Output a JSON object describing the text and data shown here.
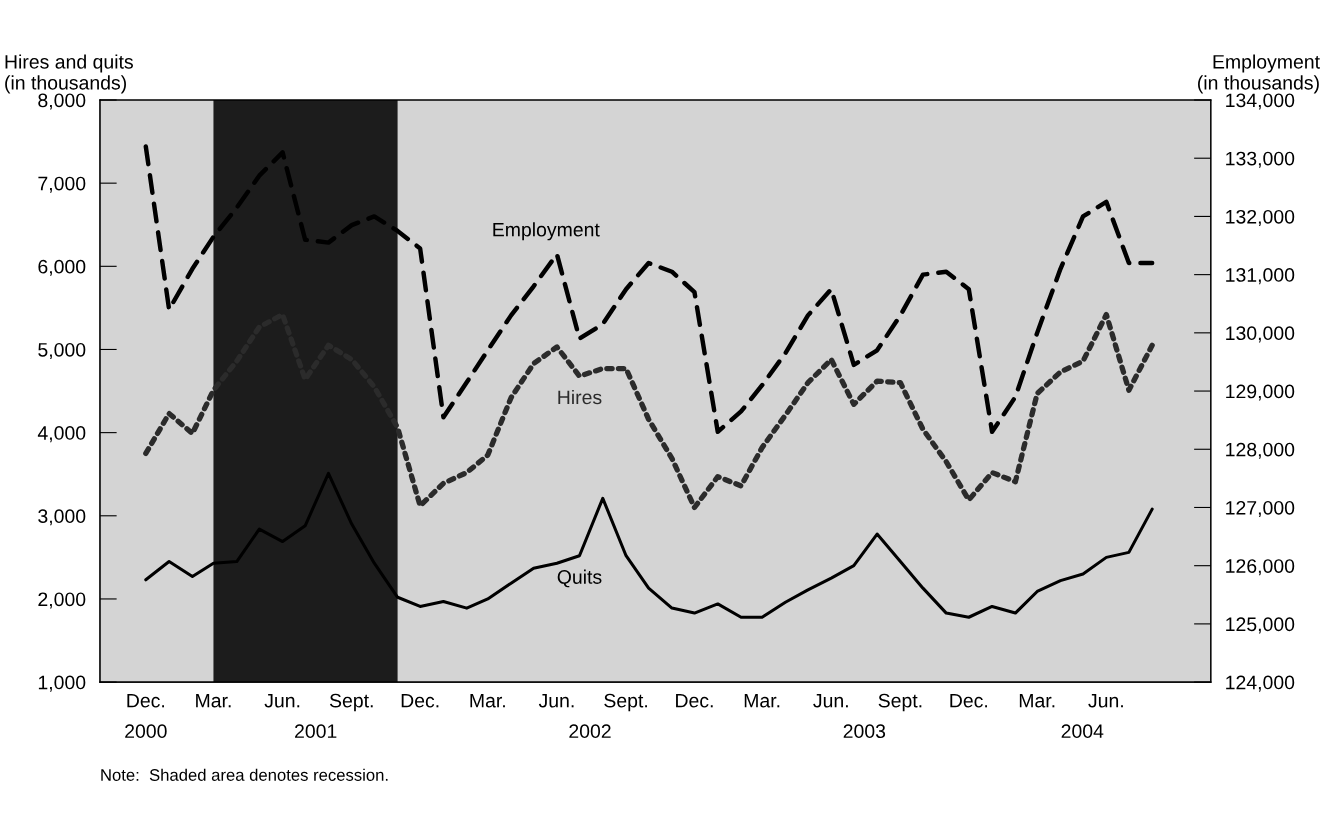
{
  "chart_data": {
    "type": "line",
    "ylabel": "Hires and quits\n(in thousands)",
    "y2label": "Employment\n(in thousands)",
    "x": [
      "2000-12",
      "2001-01",
      "2001-02",
      "2001-03",
      "2001-04",
      "2001-05",
      "2001-06",
      "2001-07",
      "2001-08",
      "2001-09",
      "2001-10",
      "2001-11",
      "2001-12",
      "2002-01",
      "2002-02",
      "2002-03",
      "2002-04",
      "2002-05",
      "2002-06",
      "2002-07",
      "2002-08",
      "2002-09",
      "2002-10",
      "2002-11",
      "2002-12",
      "2003-01",
      "2003-02",
      "2003-03",
      "2003-04",
      "2003-05",
      "2003-06",
      "2003-07",
      "2003-08",
      "2003-09",
      "2003-10",
      "2003-11",
      "2003-12",
      "2004-01",
      "2004-02",
      "2004-03",
      "2004-04",
      "2004-05",
      "2004-06",
      "2004-07",
      "2004-08"
    ],
    "series": [
      {
        "name": "Employment",
        "color": "#000000",
        "line_style": "dashed",
        "axis": "y2",
        "values": [
          133200,
          130400,
          131100,
          131650,
          132150,
          132700,
          133100,
          131600,
          131550,
          131850,
          132000,
          131750,
          131450,
          128550,
          129150,
          129700,
          130300,
          130800,
          131350,
          129900,
          130150,
          130750,
          131200,
          131050,
          130700,
          128300,
          128650,
          129100,
          129650,
          130300,
          130750,
          129450,
          129700,
          130300,
          131000,
          131050,
          130750,
          128300,
          128900,
          130000,
          131100,
          132000,
          132250,
          131200,
          131200
        ]
      },
      {
        "name": "Hires",
        "color": "#2b2b2b",
        "line_style": "dotted",
        "values": [
          3750,
          4230,
          3990,
          4510,
          4860,
          5270,
          5420,
          4640,
          5050,
          4880,
          4550,
          4060,
          3120,
          3390,
          3520,
          3730,
          4420,
          4830,
          5030,
          4680,
          4770,
          4770,
          4160,
          3690,
          3100,
          3470,
          3360,
          3820,
          4210,
          4600,
          4880,
          4340,
          4620,
          4600,
          4040,
          3650,
          3190,
          3520,
          3410,
          4470,
          4730,
          4860,
          5420,
          4510,
          5050
        ]
      },
      {
        "name": "Quits",
        "color": "#000000",
        "line_style": "solid",
        "values": [
          2230,
          2450,
          2270,
          2430,
          2450,
          2840,
          2690,
          2880,
          3510,
          2900,
          2430,
          2020,
          1910,
          1970,
          1890,
          2000,
          2190,
          2370,
          2430,
          2520,
          3210,
          2520,
          2130,
          1890,
          1830,
          1940,
          1780,
          1780,
          1960,
          2110,
          2250,
          2400,
          2780,
          2450,
          2130,
          1830,
          1780,
          1910,
          1830,
          2090,
          2220,
          2300,
          2500,
          2560,
          3080
        ]
      }
    ],
    "xlim": [
      "2000-10",
      "2004-10-18"
    ],
    "xticks": [
      {
        "value": "2000-12",
        "label": "Dec."
      },
      {
        "value": "2001-03",
        "label": "Mar."
      },
      {
        "value": "2001-06",
        "label": "Jun."
      },
      {
        "value": "2001-09",
        "label": "Sept."
      },
      {
        "value": "2001-12",
        "label": "Dec."
      },
      {
        "value": "2002-03",
        "label": "Mar."
      },
      {
        "value": "2002-06",
        "label": "Jun."
      },
      {
        "value": "2002-09",
        "label": "Sept."
      },
      {
        "value": "2002-12",
        "label": "Dec."
      },
      {
        "value": "2003-03",
        "label": "Mar."
      },
      {
        "value": "2003-06",
        "label": "Jun."
      },
      {
        "value": "2003-09",
        "label": "Sept."
      },
      {
        "value": "2003-12",
        "label": "Dec."
      },
      {
        "value": "2004-03",
        "label": "Mar."
      },
      {
        "value": "2004-06",
        "label": "Jun."
      }
    ],
    "x2lim": [
      "2000-10",
      "2004-10-18"
    ],
    "x2ticks": [
      {
        "value": "2000-12",
        "label": "2000"
      },
      {
        "value": "2001-07-15",
        "label": "2001"
      },
      {
        "value": "2002-07-15",
        "label": "2002"
      },
      {
        "value": "2003-07-15",
        "label": "2003"
      },
      {
        "value": "2004-04-30",
        "label": "2004"
      }
    ],
    "ylim": [
      1000,
      8000
    ],
    "yticks": [
      {
        "value": 1000,
        "label": "1,000"
      },
      {
        "value": 2000,
        "label": "2,000"
      },
      {
        "value": 3000,
        "label": "3,000"
      },
      {
        "value": 4000,
        "label": "4,000"
      },
      {
        "value": 5000,
        "label": "5,000"
      },
      {
        "value": 6000,
        "label": "6,000"
      },
      {
        "value": 7000,
        "label": "7,000"
      },
      {
        "value": 8000,
        "label": "8,000"
      }
    ],
    "y2lim": [
      124000,
      134000
    ],
    "y2ticks": [
      {
        "value": 124000,
        "label": "124,000"
      },
      {
        "value": 125000,
        "label": "125,000"
      },
      {
        "value": 126000,
        "label": "126,000"
      },
      {
        "value": 127000,
        "label": "127,000"
      },
      {
        "value": 128000,
        "label": "128,000"
      },
      {
        "value": 129000,
        "label": "129,000"
      },
      {
        "value": 130000,
        "label": "130,000"
      },
      {
        "value": 131000,
        "label": "131,000"
      },
      {
        "value": 132000,
        "label": "132,000"
      },
      {
        "value": 133000,
        "label": "133,000"
      },
      {
        "value": 134000,
        "label": "134,000"
      }
    ],
    "bands": [
      {
        "axis": "x",
        "from": "2001-03",
        "to": "2001-11",
        "color": "#1c1c1c"
      }
    ],
    "annotations": [
      "Note:  Shaded area denotes recession."
    ],
    "grid": false,
    "legend": false,
    "marker": "none"
  }
}
